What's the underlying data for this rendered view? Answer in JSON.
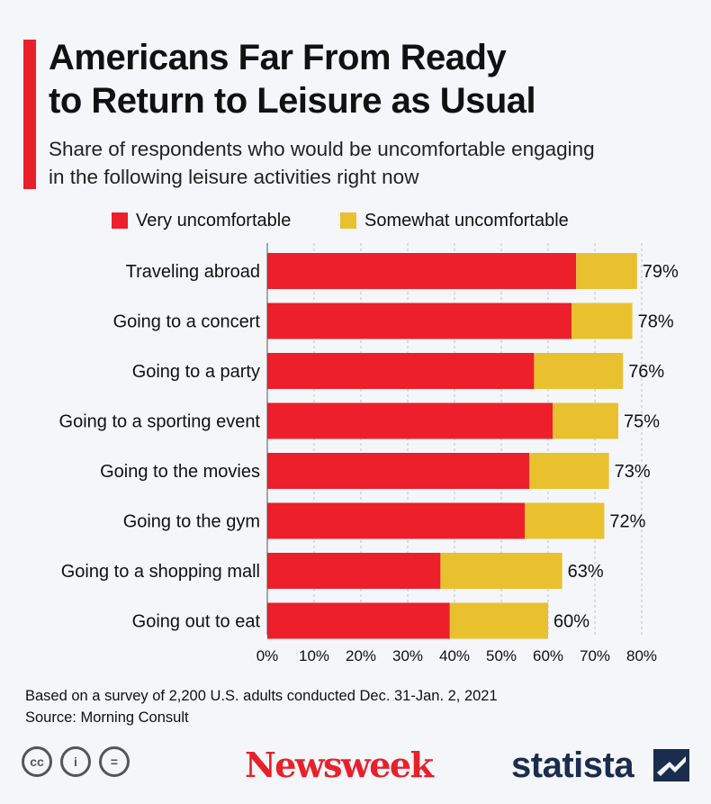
{
  "title_lines": [
    "Americans Far From Ready",
    "to Return to Leisure as Usual"
  ],
  "subtitle_lines": [
    "Share of respondents who would be uncomfortable engaging",
    "in the following leisure activities right now"
  ],
  "colors": {
    "accent": "#e8202a",
    "very": "#ec1f2a",
    "somewhat": "#e9c12e",
    "grid": "#bfc3c9"
  },
  "chart_data": {
    "type": "bar",
    "orientation": "horizontal",
    "stacked": true,
    "categories": [
      "Traveling abroad",
      "Going to a concert",
      "Going to a party",
      "Going to a sporting event",
      "Going to the movies",
      "Going to the gym",
      "Going to a shopping mall",
      "Going out to eat"
    ],
    "series": [
      {
        "name": "Very uncomfortable",
        "values": [
          66,
          65,
          57,
          61,
          56,
          55,
          37,
          39
        ]
      },
      {
        "name": "Somewhat uncomfortable",
        "values": [
          13,
          13,
          19,
          14,
          17,
          17,
          26,
          21
        ]
      }
    ],
    "total_labels": [
      "79%",
      "78%",
      "76%",
      "75%",
      "73%",
      "72%",
      "63%",
      "60%"
    ],
    "xlim": [
      0,
      80
    ],
    "xticks": [
      0,
      10,
      20,
      30,
      40,
      50,
      60,
      70,
      80
    ],
    "xtick_labels": [
      "0%",
      "10%",
      "20%",
      "30%",
      "40%",
      "50%",
      "60%",
      "70%",
      "80%"
    ],
    "grid": "vertical-dashed",
    "legend_position": "top"
  },
  "footnotes": [
    "Based on a survey of 2,200 U.S. adults conducted Dec. 31-Jan. 2, 2021",
    "Source: Morning Consult"
  ],
  "branding": {
    "newsweek": "Newsweek",
    "statista": "statista"
  },
  "icons": [
    "cc-icon",
    "attribution-icon",
    "no-derivatives-icon"
  ],
  "cc_labels": [
    "cc",
    "i",
    "="
  ]
}
